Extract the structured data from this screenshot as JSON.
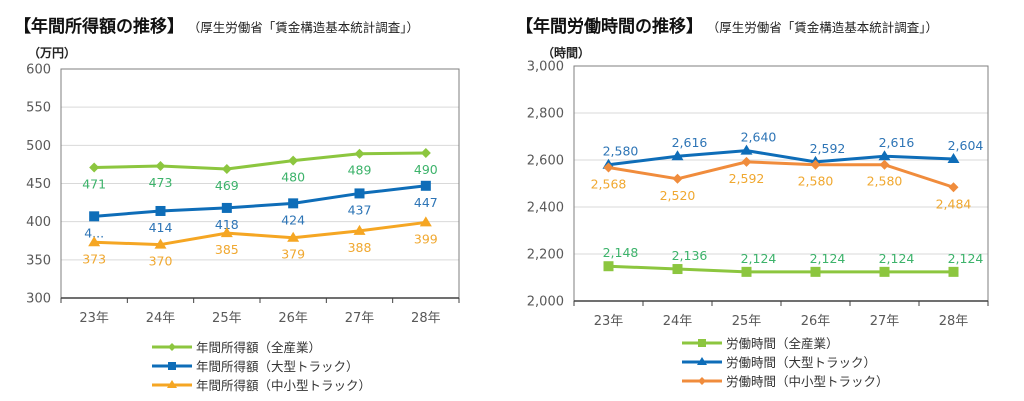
{
  "chart_data": [
    {
      "type": "line",
      "title": "【年間所得額の推移】",
      "subtitle": "（厚生労働省「賃金構造基本統計調査」）",
      "ylabel": "（万円）",
      "xlabel": "",
      "categories": [
        "23年",
        "24年",
        "25年",
        "26年",
        "27年",
        "28年"
      ],
      "ylim": [
        300,
        600
      ],
      "yticks": [
        300,
        350,
        400,
        450,
        500,
        550,
        600
      ],
      "ytick_labels": [
        "300",
        "350",
        "400",
        "450",
        "500",
        "550",
        "600"
      ],
      "grid": true,
      "legend_position": "bottom",
      "series": [
        {
          "name": "年間所得額（全産業）",
          "color": "#8CC63F",
          "label_color": "#3DB36B",
          "marker": "diamond",
          "values": [
            471,
            473,
            469,
            480,
            489,
            490
          ],
          "labels": [
            "471",
            "473",
            "469",
            "480",
            "489",
            "490"
          ],
          "label_pos": "below"
        },
        {
          "name": "年間所得額（大型トラック）",
          "color": "#0E6DB8",
          "label_color": "#2E75B6",
          "marker": "square",
          "values": [
            407,
            414,
            418,
            424,
            437,
            447
          ],
          "labels": [
            "4...",
            "414",
            "418",
            "424",
            "437",
            "447"
          ],
          "label_pos": "below"
        },
        {
          "name": "年間所得額（中小型トラック）",
          "color": "#F5A623",
          "label_color": "#F0A830",
          "marker": "triangle",
          "values": [
            373,
            370,
            385,
            379,
            388,
            399
          ],
          "labels": [
            "373",
            "370",
            "385",
            "379",
            "388",
            "399"
          ],
          "label_pos": "below"
        }
      ]
    },
    {
      "type": "line",
      "title": "【年間労働時間の推移】",
      "subtitle": "（厚生労働省「賃金構造基本統計調査」）",
      "ylabel": "（時間）",
      "xlabel": "",
      "categories": [
        "23年",
        "24年",
        "25年",
        "26年",
        "27年",
        "28年"
      ],
      "ylim": [
        2000,
        3000
      ],
      "yticks": [
        2000,
        2200,
        2400,
        2600,
        2800,
        3000
      ],
      "ytick_labels": [
        "2,000",
        "2,200",
        "2,400",
        "2,600",
        "2,800",
        "3,000"
      ],
      "grid": true,
      "legend_position": "bottom",
      "series": [
        {
          "name": "労働時間（全産業）",
          "color": "#8CC63F",
          "label_color": "#3DB36B",
          "marker": "square",
          "values": [
            2148,
            2136,
            2124,
            2124,
            2124,
            2124
          ],
          "labels": [
            "2,148",
            "2,136",
            "2,124",
            "2,124",
            "2,124",
            "2,124"
          ],
          "label_pos": "above"
        },
        {
          "name": "労働時間（大型トラック）",
          "color": "#0E6DB8",
          "label_color": "#2E75B6",
          "marker": "triangle",
          "values": [
            2580,
            2616,
            2640,
            2592,
            2616,
            2604
          ],
          "labels": [
            "2,580",
            "2,616",
            "2,640",
            "2,592",
            "2,616",
            "2,604"
          ],
          "label_pos": "above"
        },
        {
          "name": "労働時間（中小型トラック）",
          "color": "#F08C3C",
          "label_color": "#F0A830",
          "marker": "diamond",
          "values": [
            2568,
            2520,
            2592,
            2580,
            2580,
            2484
          ],
          "labels": [
            "2,568",
            "2,520",
            "2,592",
            "2,580",
            "2,580",
            "2,484"
          ],
          "label_pos": "below"
        }
      ]
    }
  ]
}
